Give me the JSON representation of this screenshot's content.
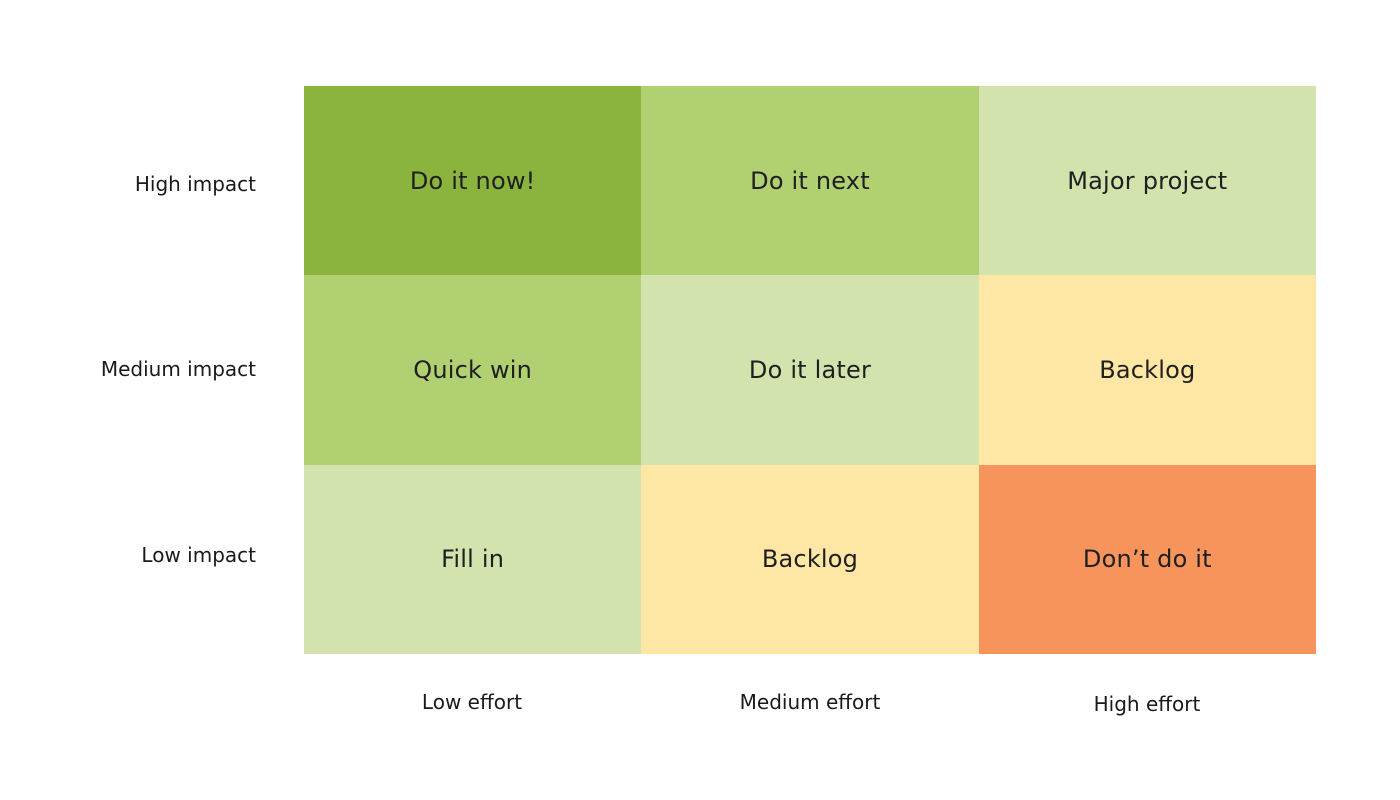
{
  "rows": [
    {
      "label": "High impact"
    },
    {
      "label": "Medium impact"
    },
    {
      "label": "Low impact"
    }
  ],
  "columns": [
    {
      "label": "Low effort"
    },
    {
      "label": "Medium effort"
    },
    {
      "label": "High effort"
    }
  ],
  "cells": [
    [
      {
        "label": "Do it now!",
        "color": "#8bb43f"
      },
      {
        "label": "Do it next",
        "color": "#b0d072"
      },
      {
        "label": "Major project",
        "color": "#d2e3ad"
      }
    ],
    [
      {
        "label": "Quick win",
        "color": "#b0d072"
      },
      {
        "label": "Do it later",
        "color": "#d2e3ad"
      },
      {
        "label": "Backlog",
        "color": "#fee7a4"
      }
    ],
    [
      {
        "label": "Fill in",
        "color": "#d2e3ad"
      },
      {
        "label": "Backlog",
        "color": "#fee7a4"
      },
      {
        "label": "Don’t do it",
        "color": "#f7945c"
      }
    ]
  ]
}
